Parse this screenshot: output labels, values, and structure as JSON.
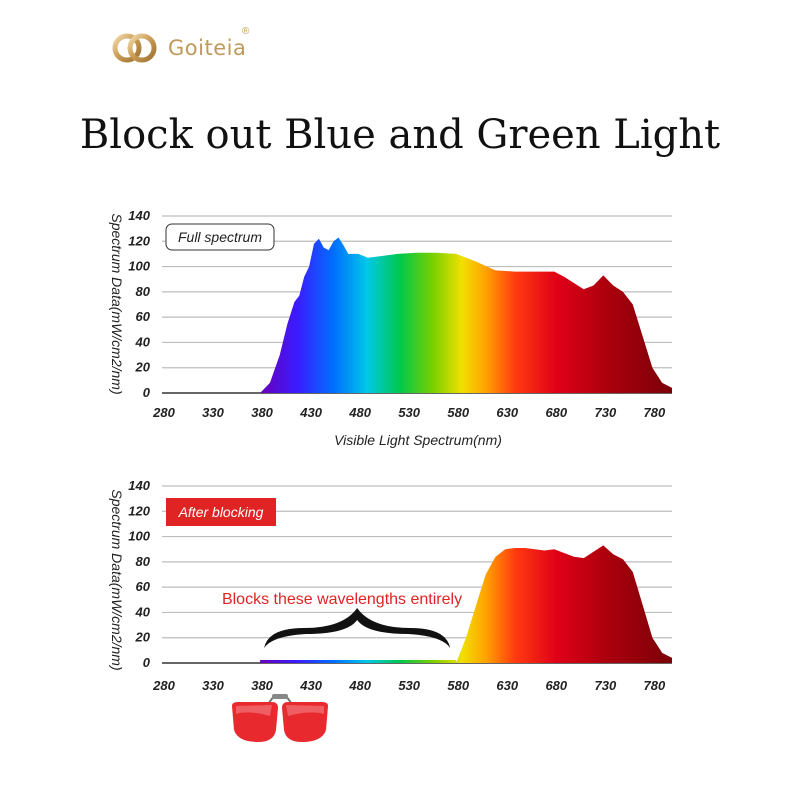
{
  "brand": {
    "name": "Goiteia",
    "registered": "®",
    "accent": "#c09a5c"
  },
  "headline": "Block out Blue and Green Light",
  "chart_data": [
    {
      "type": "area",
      "badge": "Full spectrum",
      "badge_style": "outlined",
      "xlabel": "Visible Light Spectrum(nm)",
      "ylabel": "Spectrum Data(mW/cm2/nm)",
      "x_ticks": [
        280,
        330,
        380,
        430,
        480,
        530,
        580,
        630,
        680,
        730,
        780
      ],
      "y_ticks": [
        0,
        20,
        40,
        60,
        80,
        100,
        120,
        140
      ],
      "xlim": [
        280,
        800
      ],
      "ylim": [
        0,
        140
      ],
      "grid": true,
      "series": [
        {
          "x": [
            380,
            390,
            400,
            408,
            415,
            420,
            425,
            430,
            435,
            440,
            445,
            450,
            455,
            460,
            465,
            470,
            480,
            490,
            500,
            520,
            540,
            560,
            580,
            600,
            620,
            640,
            660,
            680,
            690,
            700,
            710,
            720,
            730,
            740,
            750,
            760,
            770,
            780,
            790,
            800
          ],
          "y": [
            0,
            8,
            30,
            55,
            72,
            77,
            92,
            100,
            118,
            122,
            115,
            113,
            120,
            123,
            117,
            110,
            110,
            107,
            108,
            110,
            111,
            111,
            110,
            104,
            97,
            96,
            96,
            96,
            92,
            87,
            82,
            85,
            93,
            85,
            80,
            70,
            45,
            20,
            8,
            4
          ]
        }
      ]
    },
    {
      "type": "area",
      "badge": "After blocking",
      "badge_style": "filled",
      "badge_color": "#e02424",
      "annotation": "Blocks these wavelengths entirely",
      "blocked_range": [
        380,
        580
      ],
      "xlabel": "Visible Light Spectrum(nm)",
      "ylabel": "Spectrum Data(mW/cm2/nm)",
      "x_ticks": [
        280,
        330,
        380,
        430,
        480,
        530,
        580,
        630,
        680,
        730,
        780
      ],
      "y_ticks": [
        0,
        20,
        40,
        60,
        80,
        100,
        120,
        140
      ],
      "xlim": [
        280,
        800
      ],
      "ylim": [
        0,
        140
      ],
      "grid": true,
      "series": [
        {
          "x": [
            380,
            580,
            590,
            600,
            610,
            620,
            630,
            640,
            650,
            660,
            670,
            680,
            690,
            700,
            710,
            720,
            730,
            740,
            750,
            760,
            770,
            780,
            790,
            800
          ],
          "y": [
            0,
            0,
            20,
            45,
            70,
            84,
            90,
            91,
            91,
            90,
            89,
            90,
            87,
            84,
            83,
            88,
            93,
            86,
            82,
            72,
            46,
            20,
            8,
            4
          ]
        }
      ]
    }
  ],
  "product": {
    "icon": "clip-on-red-lens-glasses-icon",
    "lens_color": "#e8292e"
  }
}
